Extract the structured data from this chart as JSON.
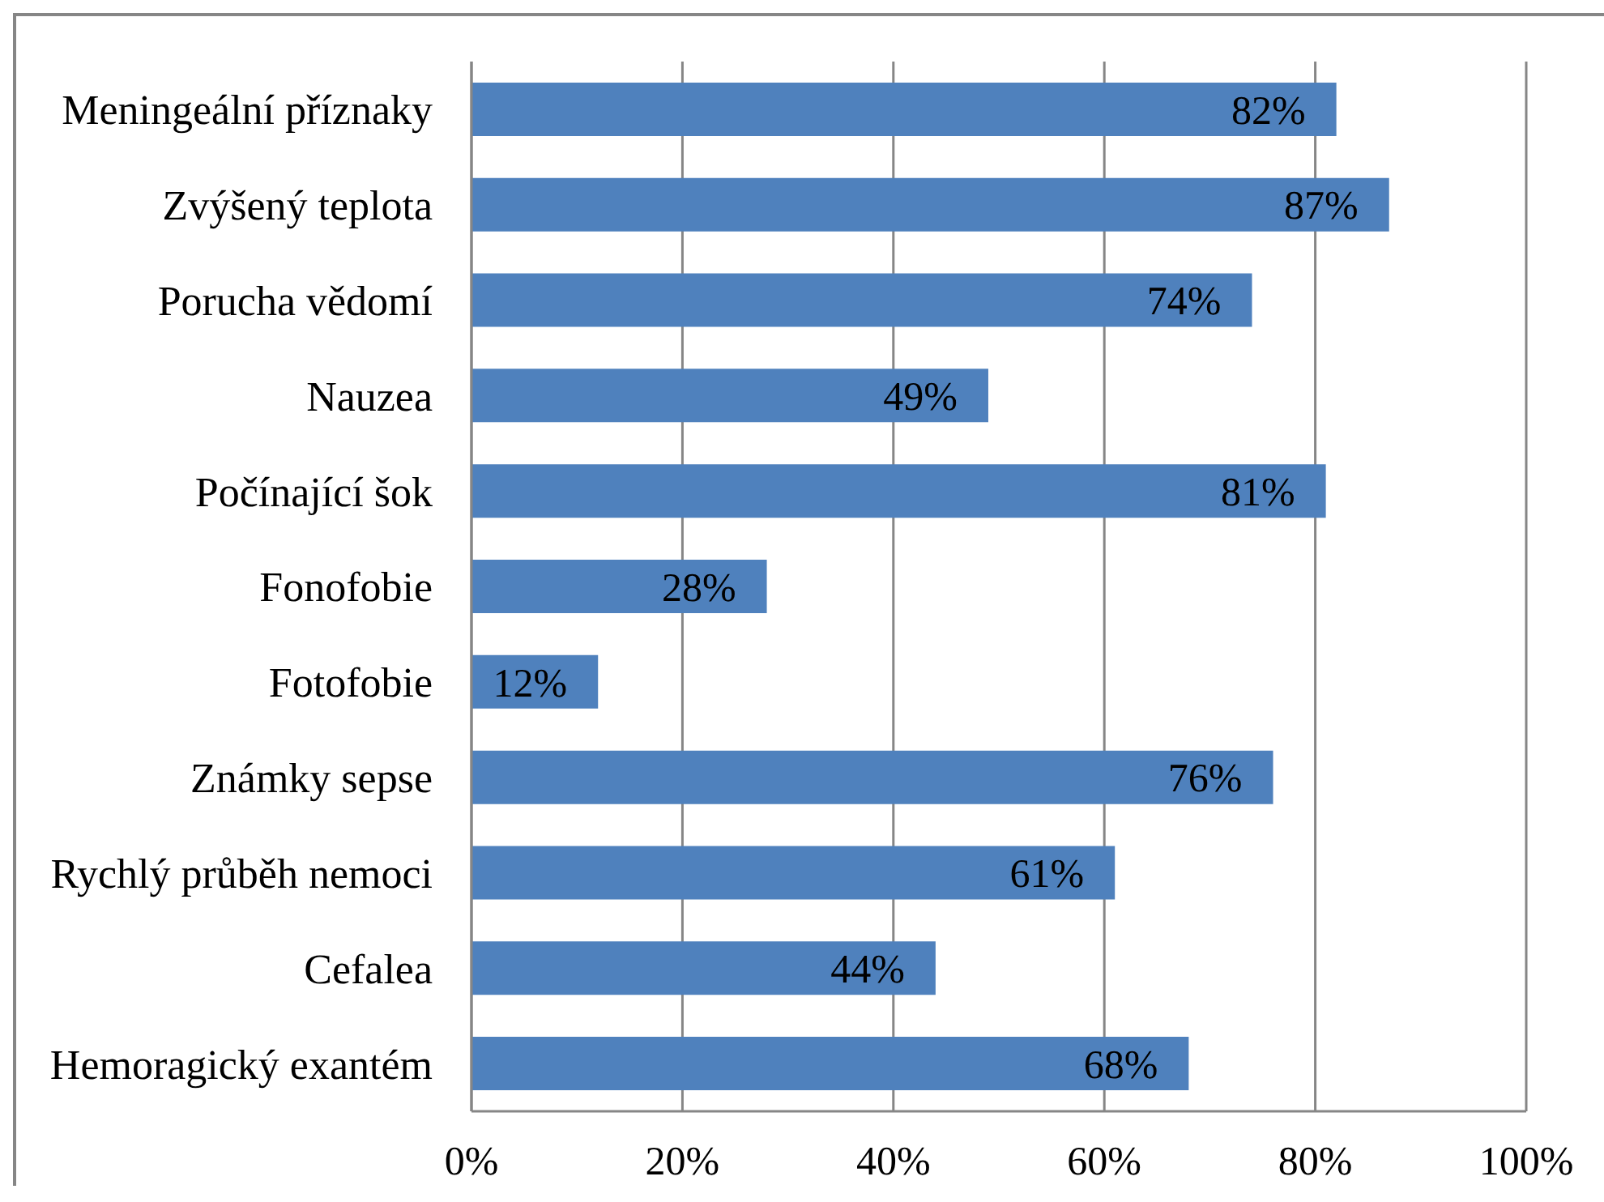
{
  "chart_data": {
    "type": "bar",
    "orientation": "horizontal",
    "categories": [
      "Meningeální příznaky",
      "Zvýšený teplota",
      "Porucha vědomí",
      "Nauzea",
      "Počínající šok",
      "Fonofobie",
      "Fotofobie",
      "Známky sepse",
      "Rychlý průběh nemoci",
      "Cefalea",
      "Hemoragický exantém"
    ],
    "values": [
      82,
      87,
      74,
      49,
      81,
      28,
      12,
      76,
      61,
      44,
      68
    ],
    "value_labels": [
      "82%",
      "87%",
      "74%",
      "49%",
      "81%",
      "28%",
      "12%",
      "76%",
      "61%",
      "44%",
      "68%"
    ],
    "color": "#4f81bd",
    "xlim": [
      0,
      100
    ],
    "xticks": [
      {
        "value": 0,
        "label": "0%"
      },
      {
        "value": 20,
        "label": "20%"
      },
      {
        "value": 40,
        "label": "40%"
      },
      {
        "value": 60,
        "label": "60%"
      },
      {
        "value": 80,
        "label": "80%"
      },
      {
        "value": 100,
        "label": "100%"
      }
    ],
    "grid": "x"
  }
}
